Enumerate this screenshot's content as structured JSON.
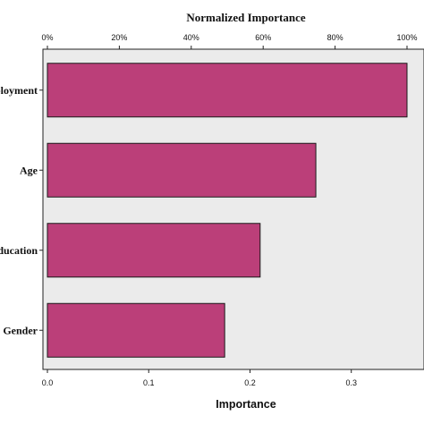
{
  "chart_data": {
    "type": "bar",
    "orientation": "horizontal",
    "categories": [
      "Employment",
      "Age",
      "Education",
      "Gender"
    ],
    "category_labels_visible": [
      "ployment",
      "Age",
      "ducation",
      "Gender"
    ],
    "values": [
      0.355,
      0.265,
      0.21,
      0.175
    ],
    "top_axis": {
      "title": "Normalized Importance",
      "ticks": [
        "0%",
        "20%",
        "40%",
        "60%",
        "80%",
        "100%"
      ],
      "tick_values": [
        0,
        0.2,
        0.4,
        0.6,
        0.8,
        1.0
      ]
    },
    "bottom_axis": {
      "title": "Importance",
      "ticks": [
        "0.0",
        "0.1",
        "0.2",
        "0.3"
      ],
      "tick_values": [
        0,
        0.1,
        0.2,
        0.3
      ]
    },
    "xlim": [
      0,
      0.355
    ],
    "bar_color": "#bb3f79",
    "plot_background": "#ebebeb",
    "grid": false,
    "legend": "none"
  }
}
